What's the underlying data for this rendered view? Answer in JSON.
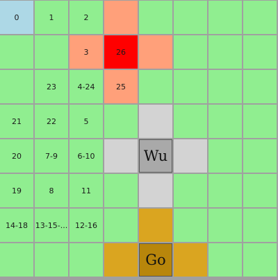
{
  "colors": {
    "empty": "#90ee90",
    "start": "#add8e6",
    "path": "#ffa07a",
    "target": "#ff0000",
    "wu_zone": "#d3d3d3",
    "wu_piece": "#a9a9a9",
    "go_zone": "#daa520",
    "go_piece": "#b8860b"
  },
  "board": {
    "rows": [
      [
        {
          "label": "0",
          "kind": "start"
        },
        {
          "label": "1",
          "kind": "empty"
        },
        {
          "label": "2",
          "kind": "empty"
        },
        {
          "label": "",
          "kind": "path"
        },
        {
          "label": "",
          "kind": "empty"
        },
        {
          "label": "",
          "kind": "empty"
        },
        {
          "label": "",
          "kind": "empty"
        },
        {
          "label": "",
          "kind": "empty"
        }
      ],
      [
        {
          "label": "",
          "kind": "empty"
        },
        {
          "label": "",
          "kind": "empty"
        },
        {
          "label": "3",
          "kind": "path"
        },
        {
          "label": "26",
          "kind": "target"
        },
        {
          "label": "",
          "kind": "path"
        },
        {
          "label": "",
          "kind": "empty"
        },
        {
          "label": "",
          "kind": "empty"
        },
        {
          "label": "",
          "kind": "empty"
        }
      ],
      [
        {
          "label": "",
          "kind": "empty"
        },
        {
          "label": "23",
          "kind": "empty"
        },
        {
          "label": "4-24",
          "kind": "empty"
        },
        {
          "label": "25",
          "kind": "path"
        },
        {
          "label": "",
          "kind": "empty"
        },
        {
          "label": "",
          "kind": "empty"
        },
        {
          "label": "",
          "kind": "empty"
        },
        {
          "label": "",
          "kind": "empty"
        }
      ],
      [
        {
          "label": "21",
          "kind": "empty"
        },
        {
          "label": "22",
          "kind": "empty"
        },
        {
          "label": "5",
          "kind": "empty"
        },
        {
          "label": "",
          "kind": "empty"
        },
        {
          "label": "",
          "kind": "wu_zone"
        },
        {
          "label": "",
          "kind": "empty"
        },
        {
          "label": "",
          "kind": "empty"
        },
        {
          "label": "",
          "kind": "empty"
        }
      ],
      [
        {
          "label": "20",
          "kind": "empty"
        },
        {
          "label": "7-9",
          "kind": "empty"
        },
        {
          "label": "6-10",
          "kind": "empty"
        },
        {
          "label": "",
          "kind": "wu_zone"
        },
        {
          "label": "Wu",
          "kind": "wu_piece"
        },
        {
          "label": "",
          "kind": "wu_zone"
        },
        {
          "label": "",
          "kind": "empty"
        },
        {
          "label": "",
          "kind": "empty"
        }
      ],
      [
        {
          "label": "19",
          "kind": "empty"
        },
        {
          "label": "8",
          "kind": "empty"
        },
        {
          "label": "11",
          "kind": "empty"
        },
        {
          "label": "",
          "kind": "empty"
        },
        {
          "label": "",
          "kind": "wu_zone"
        },
        {
          "label": "",
          "kind": "empty"
        },
        {
          "label": "",
          "kind": "empty"
        },
        {
          "label": "",
          "kind": "empty"
        }
      ],
      [
        {
          "label": "14-18",
          "kind": "empty"
        },
        {
          "label": "13-15-...",
          "kind": "empty"
        },
        {
          "label": "12-16",
          "kind": "empty"
        },
        {
          "label": "",
          "kind": "empty"
        },
        {
          "label": "",
          "kind": "go_zone"
        },
        {
          "label": "",
          "kind": "empty"
        },
        {
          "label": "",
          "kind": "empty"
        },
        {
          "label": "",
          "kind": "empty"
        }
      ],
      [
        {
          "label": "",
          "kind": "empty"
        },
        {
          "label": "",
          "kind": "empty"
        },
        {
          "label": "",
          "kind": "empty"
        },
        {
          "label": "",
          "kind": "go_zone"
        },
        {
          "label": "Go",
          "kind": "go_piece"
        },
        {
          "label": "",
          "kind": "go_zone"
        },
        {
          "label": "",
          "kind": "empty"
        },
        {
          "label": "",
          "kind": "empty"
        }
      ]
    ]
  }
}
